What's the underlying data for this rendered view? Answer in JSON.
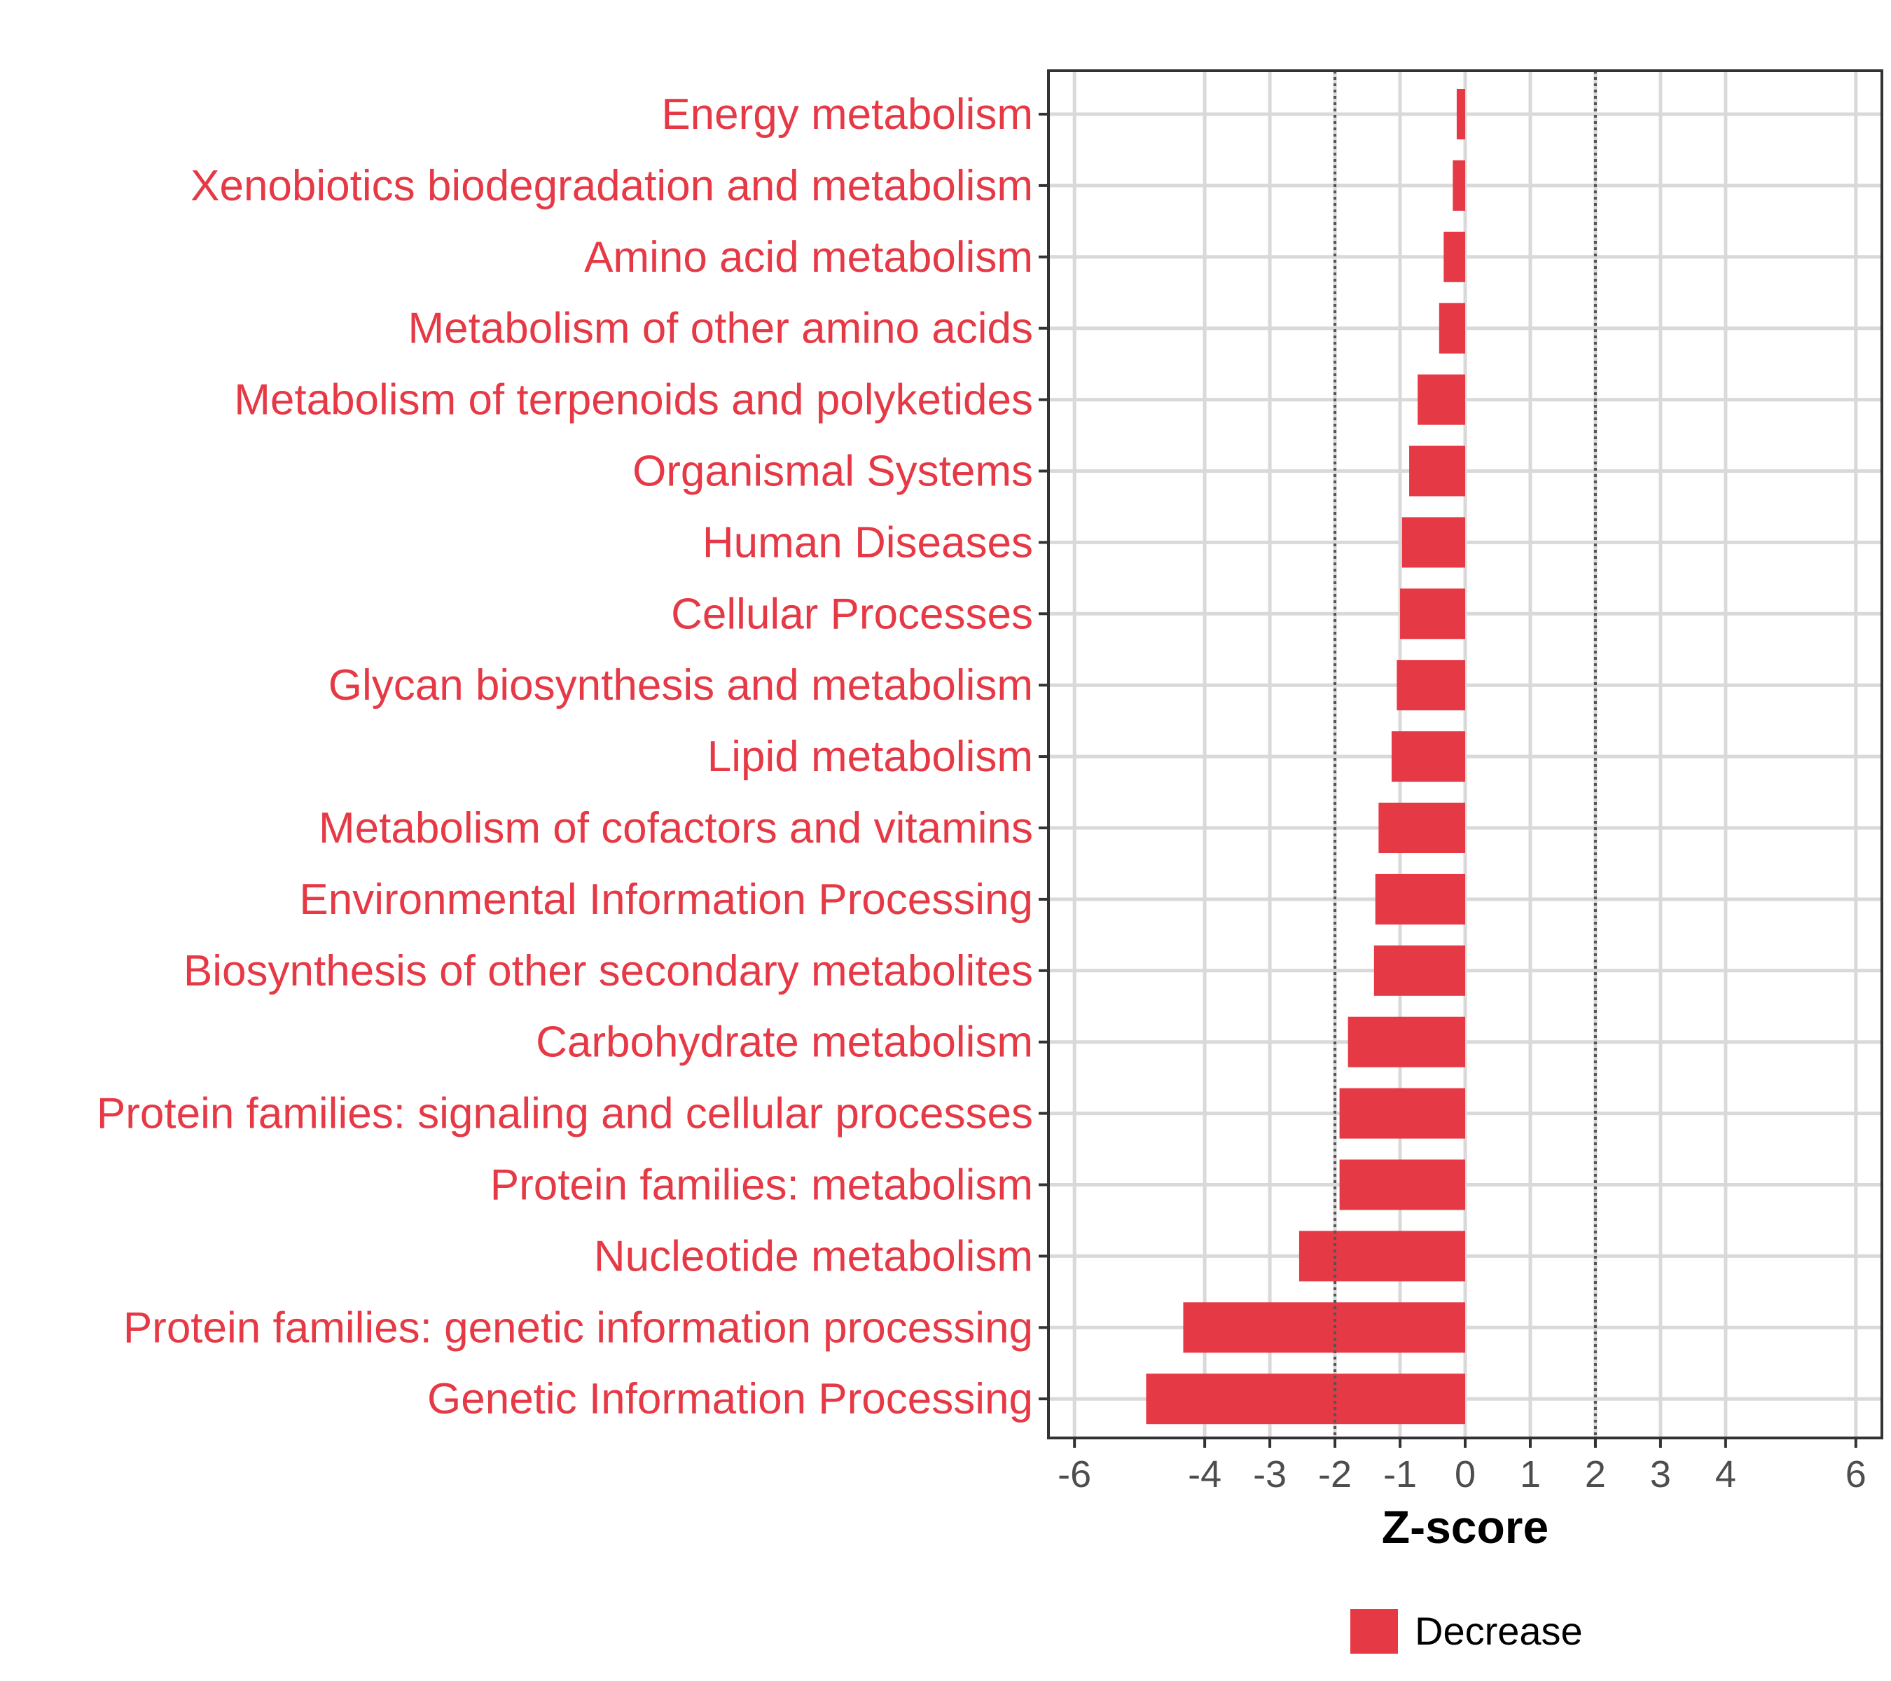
{
  "chart_data": {
    "type": "bar",
    "orientation": "horizontal",
    "title": "",
    "xlabel": "Z-score",
    "ylabel": "",
    "xlim": [
      -6.4,
      6.4
    ],
    "xticks": [
      -6,
      -4,
      -3,
      -2,
      -1,
      0,
      1,
      2,
      3,
      4,
      6
    ],
    "xtick_labels": [
      "-6",
      "-4",
      "-3",
      "-2",
      "-1",
      "0",
      "1",
      "2",
      "3",
      "4",
      "6"
    ],
    "reference_lines": [
      -2,
      2
    ],
    "grid": true,
    "categories": [
      "Energy metabolism",
      "Xenobiotics biodegradation and metabolism",
      "Amino acid metabolism",
      "Metabolism of other amino acids",
      "Metabolism of terpenoids and polyketides",
      "Organismal Systems",
      "Human Diseases",
      "Cellular Processes",
      "Glycan biosynthesis and metabolism",
      "Lipid metabolism",
      "Metabolism of cofactors and vitamins",
      "Environmental Information Processing",
      "Biosynthesis of other secondary metabolites",
      "Carbohydrate metabolism",
      "Protein families: signaling and cellular processes",
      "Protein families: metabolism",
      "Nucleotide metabolism",
      "Protein families: genetic information processing",
      "Genetic Information Processing"
    ],
    "series": [
      {
        "name": "Decrease",
        "color": "#e63946",
        "values": [
          -0.13,
          -0.19,
          -0.33,
          -0.4,
          -0.73,
          -0.86,
          -0.97,
          -1.0,
          -1.05,
          -1.13,
          -1.33,
          -1.38,
          -1.4,
          -1.8,
          -1.93,
          -1.93,
          -2.55,
          -4.33,
          -4.9
        ]
      }
    ],
    "legend": {
      "position": "bottom",
      "entries": [
        "Decrease"
      ]
    }
  }
}
